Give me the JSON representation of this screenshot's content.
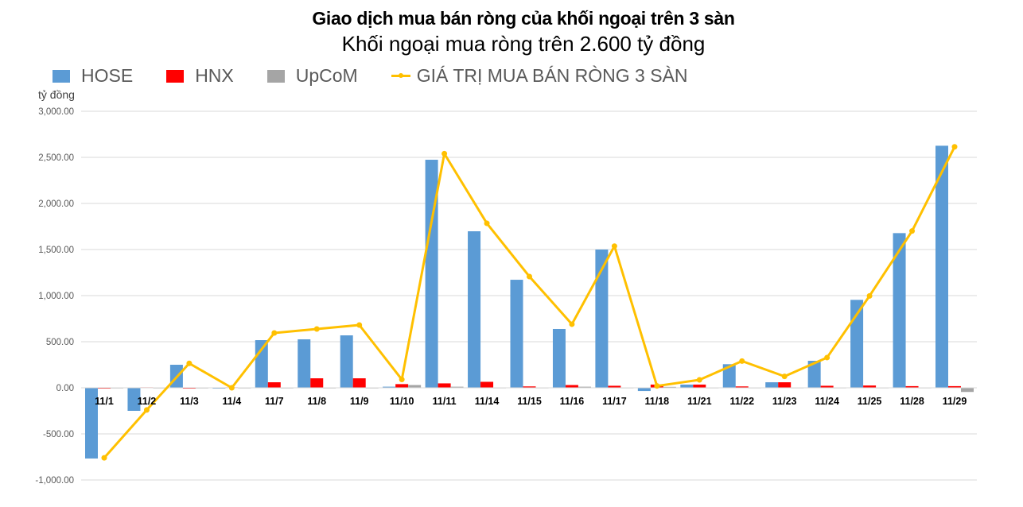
{
  "header": {
    "title": "Giao dịch mua bán ròng của khối ngoại trên 3 sàn",
    "subtitle": "Khối ngoại mua ròng trên 2.600 tỷ đồng"
  },
  "legend": [
    {
      "name": "HOSE",
      "color": "#5B9BD5",
      "kind": "bar"
    },
    {
      "name": "HNX",
      "color": "#FF0000",
      "kind": "bar"
    },
    {
      "name": "UpCoM",
      "color": "#A5A5A5",
      "kind": "bar"
    },
    {
      "name": "GIÁ TRỊ MUA BÁN RÒNG 3 SÀN",
      "color": "#FFC000",
      "kind": "line"
    }
  ],
  "axis": {
    "y_unit": "tỷ đồng",
    "y_ticks": [
      "3,000.00",
      "2,500.00",
      "2,000.00",
      "1,500.00",
      "1,000.00",
      "500.00",
      "0.00",
      "-500.00",
      "-1,000.00"
    ]
  },
  "chart_data": {
    "type": "bar",
    "title": "Giao dịch mua bán ròng của khối ngoại trên 3 sàn",
    "subtitle": "Khối ngoại mua ròng trên 2.600 tỷ đồng",
    "xlabel": "",
    "ylabel": "tỷ đồng",
    "ylim": [
      -1000,
      3000
    ],
    "grid": true,
    "legend_position": "top-left",
    "categories": [
      "11/1",
      "11/2",
      "11/3",
      "11/4",
      "11/7",
      "11/8",
      "11/9",
      "11/10",
      "11/11",
      "11/14",
      "11/15",
      "11/16",
      "11/17",
      "11/18",
      "11/21",
      "11/22",
      "11/23",
      "11/24",
      "11/25",
      "11/28",
      "11/29"
    ],
    "series": [
      {
        "name": "HOSE",
        "type": "bar",
        "color": "#5B9BD5",
        "values": [
          -767,
          -250,
          250,
          -5,
          517,
          526,
          569,
          12,
          2474,
          1698,
          1172,
          638,
          1500,
          -35,
          35,
          256,
          60,
          293,
          954,
          1678,
          2626
        ]
      },
      {
        "name": "HNX",
        "type": "bar",
        "color": "#FF0000",
        "values": [
          -5,
          5,
          -8,
          5,
          60,
          103,
          103,
          40,
          48,
          65,
          15,
          30,
          22,
          35,
          35,
          15,
          60,
          22,
          25,
          18,
          18
        ]
      },
      {
        "name": "UpCoM",
        "type": "bar",
        "color": "#A5A5A5",
        "values": [
          2,
          2,
          2,
          2,
          2,
          2,
          2,
          30,
          12,
          3,
          3,
          12,
          3,
          10,
          3,
          3,
          3,
          3,
          3,
          3,
          -45
        ]
      },
      {
        "name": "GIÁ TRỊ MUA BÁN RÒNG 3 SÀN",
        "type": "line",
        "color": "#FFC000",
        "values": [
          -760,
          -240,
          265,
          0,
          595,
          638,
          681,
          90,
          2540,
          1784,
          1207,
          690,
          1537,
          20,
          86,
          290,
          124,
          328,
          997,
          1701,
          2614
        ]
      }
    ]
  }
}
